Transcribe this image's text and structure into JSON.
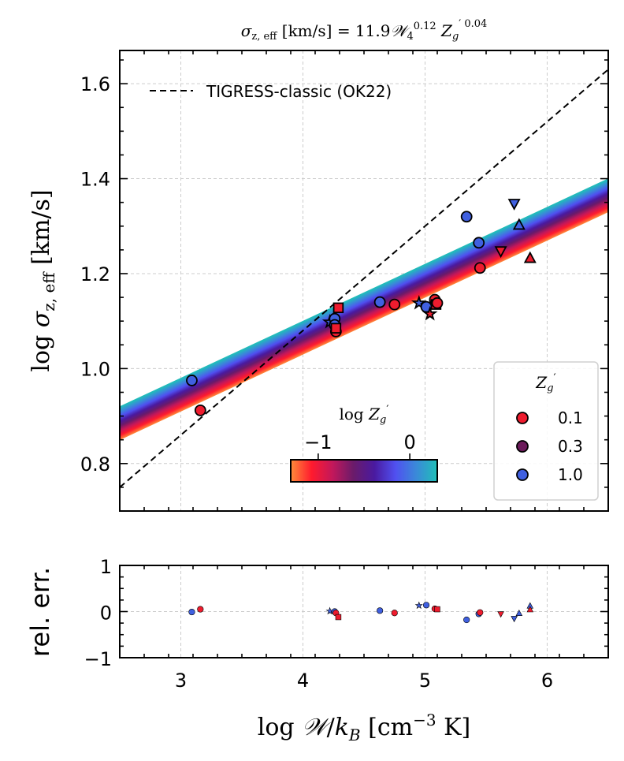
{
  "chart_data": [
    {
      "type": "scatter",
      "title": "σz,eff [km/s] = 11.9𝒲4^0.12 Z′g^0.04",
      "xlabel": "log 𝒲/kB [cm⁻³ K]",
      "ylabel": "log σz,eff [km/s]",
      "xlim": [
        2.5,
        6.5
      ],
      "ylim": [
        0.7,
        1.67
      ],
      "xticks": [
        3,
        4,
        5,
        6
      ],
      "yticks": [
        0.8,
        1.0,
        1.2,
        1.4,
        1.6
      ],
      "xtick_labels": [
        "3",
        "4",
        "5",
        "6"
      ],
      "ytick_labels": [
        "0.8",
        "1.0",
        "1.2",
        "1.4",
        "1.6"
      ],
      "grid": true,
      "reference_line": {
        "label": "TIGRESS-classic (OK22)",
        "style": "dashed",
        "points": [
          [
            2.5,
            0.75
          ],
          [
            6.5,
            1.63
          ]
        ]
      },
      "fit_band": {
        "slope": 0.12,
        "intercept_log_z_min": 0.85,
        "intercept_log_z_max": 0.92,
        "x_range": [
          2.5,
          6.5
        ]
      },
      "colorbar": {
        "label": "log Z′g",
        "tick_labels": [
          "−1",
          "0"
        ],
        "ticks": [
          -1,
          0
        ],
        "range": [
          -1.3,
          0.3
        ],
        "stops": [
          "#ff8c3a",
          "#ff1a2e",
          "#c2185b",
          "#6a1b6a",
          "#4a1aa0",
          "#5050f0",
          "#3a8ad8",
          "#20c0b8"
        ]
      },
      "legend": {
        "title": "Z′g",
        "position": "bottom-right",
        "entries": [
          {
            "label": "0.1",
            "color": "#ee1c2e"
          },
          {
            "label": "0.3",
            "color": "#6b1a5a"
          },
          {
            "label": "1.0",
            "color": "#4060e0"
          }
        ]
      },
      "colors": {
        "low_z": "#ee1c2e",
        "high_z": "#4060e0",
        "edge": "#000000"
      },
      "points": [
        {
          "x": 3.09,
          "y": 0.975,
          "z": 1.0,
          "marker": "circle"
        },
        {
          "x": 3.16,
          "y": 0.912,
          "z": 0.1,
          "marker": "circle"
        },
        {
          "x": 4.22,
          "y": 1.098,
          "z": 1.0,
          "marker": "star"
        },
        {
          "x": 4.26,
          "y": 1.105,
          "z": 1.0,
          "marker": "circle"
        },
        {
          "x": 4.26,
          "y": 1.092,
          "z": 1.0,
          "marker": "circle"
        },
        {
          "x": 4.27,
          "y": 1.078,
          "z": 0.1,
          "marker": "circle"
        },
        {
          "x": 4.27,
          "y": 1.085,
          "z": 0.1,
          "marker": "square"
        },
        {
          "x": 4.29,
          "y": 1.128,
          "z": 0.1,
          "marker": "square"
        },
        {
          "x": 4.63,
          "y": 1.14,
          "z": 1.0,
          "marker": "circle"
        },
        {
          "x": 4.75,
          "y": 1.135,
          "z": 0.1,
          "marker": "circle"
        },
        {
          "x": 4.95,
          "y": 1.138,
          "z": 1.0,
          "marker": "star"
        },
        {
          "x": 5.01,
          "y": 1.13,
          "z": 1.0,
          "marker": "circle"
        },
        {
          "x": 5.04,
          "y": 1.115,
          "z": 0.1,
          "marker": "star"
        },
        {
          "x": 5.08,
          "y": 1.145,
          "z": 0.1,
          "marker": "circle"
        },
        {
          "x": 5.09,
          "y": 1.135,
          "z": 0.1,
          "marker": "square"
        },
        {
          "x": 5.1,
          "y": 1.138,
          "z": 0.1,
          "marker": "circle"
        },
        {
          "x": 5.34,
          "y": 1.32,
          "z": 1.0,
          "marker": "circle"
        },
        {
          "x": 5.44,
          "y": 1.265,
          "z": 1.0,
          "marker": "circle"
        },
        {
          "x": 5.45,
          "y": 1.212,
          "z": 0.1,
          "marker": "circle"
        },
        {
          "x": 5.62,
          "y": 1.248,
          "z": 0.1,
          "marker": "triangle-down"
        },
        {
          "x": 5.73,
          "y": 1.348,
          "z": 1.0,
          "marker": "triangle-down"
        },
        {
          "x": 5.77,
          "y": 1.302,
          "z": 1.0,
          "marker": "triangle-up"
        },
        {
          "x": 5.86,
          "y": 1.232,
          "z": 0.1,
          "marker": "triangle-up"
        }
      ]
    },
    {
      "type": "scatter",
      "ylabel": "rel. err.",
      "xlabel": "log 𝒲/kB [cm⁻³ K]",
      "xlim": [
        2.5,
        6.5
      ],
      "ylim": [
        -1,
        1
      ],
      "yticks": [
        -1,
        0,
        1
      ],
      "ytick_labels": [
        "−1",
        "0",
        "1"
      ],
      "xtick_labels": [
        "3",
        "4",
        "5",
        "6"
      ],
      "grid": true,
      "points": [
        {
          "x": 3.09,
          "y": -0.01,
          "z": 1.0,
          "marker": "circle"
        },
        {
          "x": 3.16,
          "y": 0.05,
          "z": 0.1,
          "marker": "circle"
        },
        {
          "x": 4.22,
          "y": 0.01,
          "z": 1.0,
          "marker": "star"
        },
        {
          "x": 4.26,
          "y": 0.0,
          "z": 1.0,
          "marker": "circle"
        },
        {
          "x": 4.27,
          "y": -0.03,
          "z": 0.1,
          "marker": "circle"
        },
        {
          "x": 4.29,
          "y": -0.12,
          "z": 0.1,
          "marker": "square"
        },
        {
          "x": 4.63,
          "y": 0.02,
          "z": 1.0,
          "marker": "circle"
        },
        {
          "x": 4.75,
          "y": -0.03,
          "z": 0.1,
          "marker": "circle"
        },
        {
          "x": 4.95,
          "y": 0.13,
          "z": 1.0,
          "marker": "star"
        },
        {
          "x": 5.01,
          "y": 0.14,
          "z": 1.0,
          "marker": "circle"
        },
        {
          "x": 5.08,
          "y": 0.06,
          "z": 0.1,
          "marker": "circle"
        },
        {
          "x": 5.1,
          "y": 0.05,
          "z": 0.1,
          "marker": "square"
        },
        {
          "x": 5.34,
          "y": -0.18,
          "z": 1.0,
          "marker": "circle"
        },
        {
          "x": 5.44,
          "y": -0.05,
          "z": 1.0,
          "marker": "circle"
        },
        {
          "x": 5.45,
          "y": -0.02,
          "z": 0.1,
          "marker": "circle"
        },
        {
          "x": 5.62,
          "y": -0.05,
          "z": 0.1,
          "marker": "triangle-down"
        },
        {
          "x": 5.73,
          "y": -0.15,
          "z": 1.0,
          "marker": "triangle-down"
        },
        {
          "x": 5.77,
          "y": -0.04,
          "z": 1.0,
          "marker": "triangle-up"
        },
        {
          "x": 5.86,
          "y": 0.12,
          "z": 1.0,
          "marker": "triangle-up"
        },
        {
          "x": 5.86,
          "y": 0.04,
          "z": 0.1,
          "marker": "triangle-up"
        }
      ]
    }
  ]
}
